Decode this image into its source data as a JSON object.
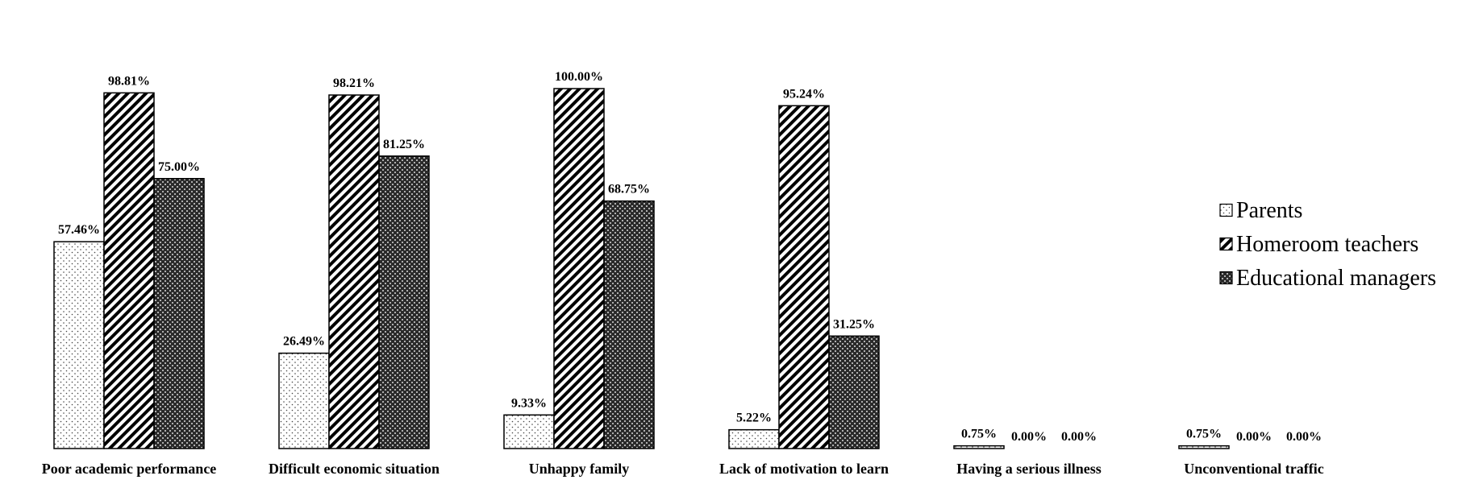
{
  "chart_data": {
    "type": "bar",
    "categories": [
      "Poor academic performance",
      "Difficult economic situation",
      "Unhappy family",
      "Lack of motivation to learn",
      "Having a serious illness",
      "Unconventional traffic"
    ],
    "series": [
      {
        "name": "Parents",
        "values": [
          57.46,
          26.49,
          9.33,
          5.22,
          0.75,
          0.75
        ],
        "labels": [
          "57.46%",
          "26.49%",
          "9.33%",
          "5.22%",
          "0.75%",
          "0.75%"
        ],
        "pattern": "dots"
      },
      {
        "name": "Homeroom teachers",
        "values": [
          98.81,
          98.21,
          100.0,
          95.24,
          0.0,
          0.0
        ],
        "labels": [
          "98.81%",
          "98.21%",
          "100.00%",
          "95.24%",
          "0.00%",
          "0.00%"
        ],
        "pattern": "diagonal-stripes"
      },
      {
        "name": "Educational managers",
        "values": [
          75.0,
          81.25,
          68.75,
          31.25,
          0.0,
          0.0
        ],
        "labels": [
          "75.00%",
          "81.25%",
          "68.75%",
          "31.25%",
          "0.00%",
          "0.00%"
        ],
        "pattern": "crosshatch"
      }
    ],
    "ylim": [
      0,
      100
    ],
    "grid": false,
    "legend_position": "right",
    "colors": {
      "stroke": "#000000",
      "background": "#ffffff"
    }
  }
}
